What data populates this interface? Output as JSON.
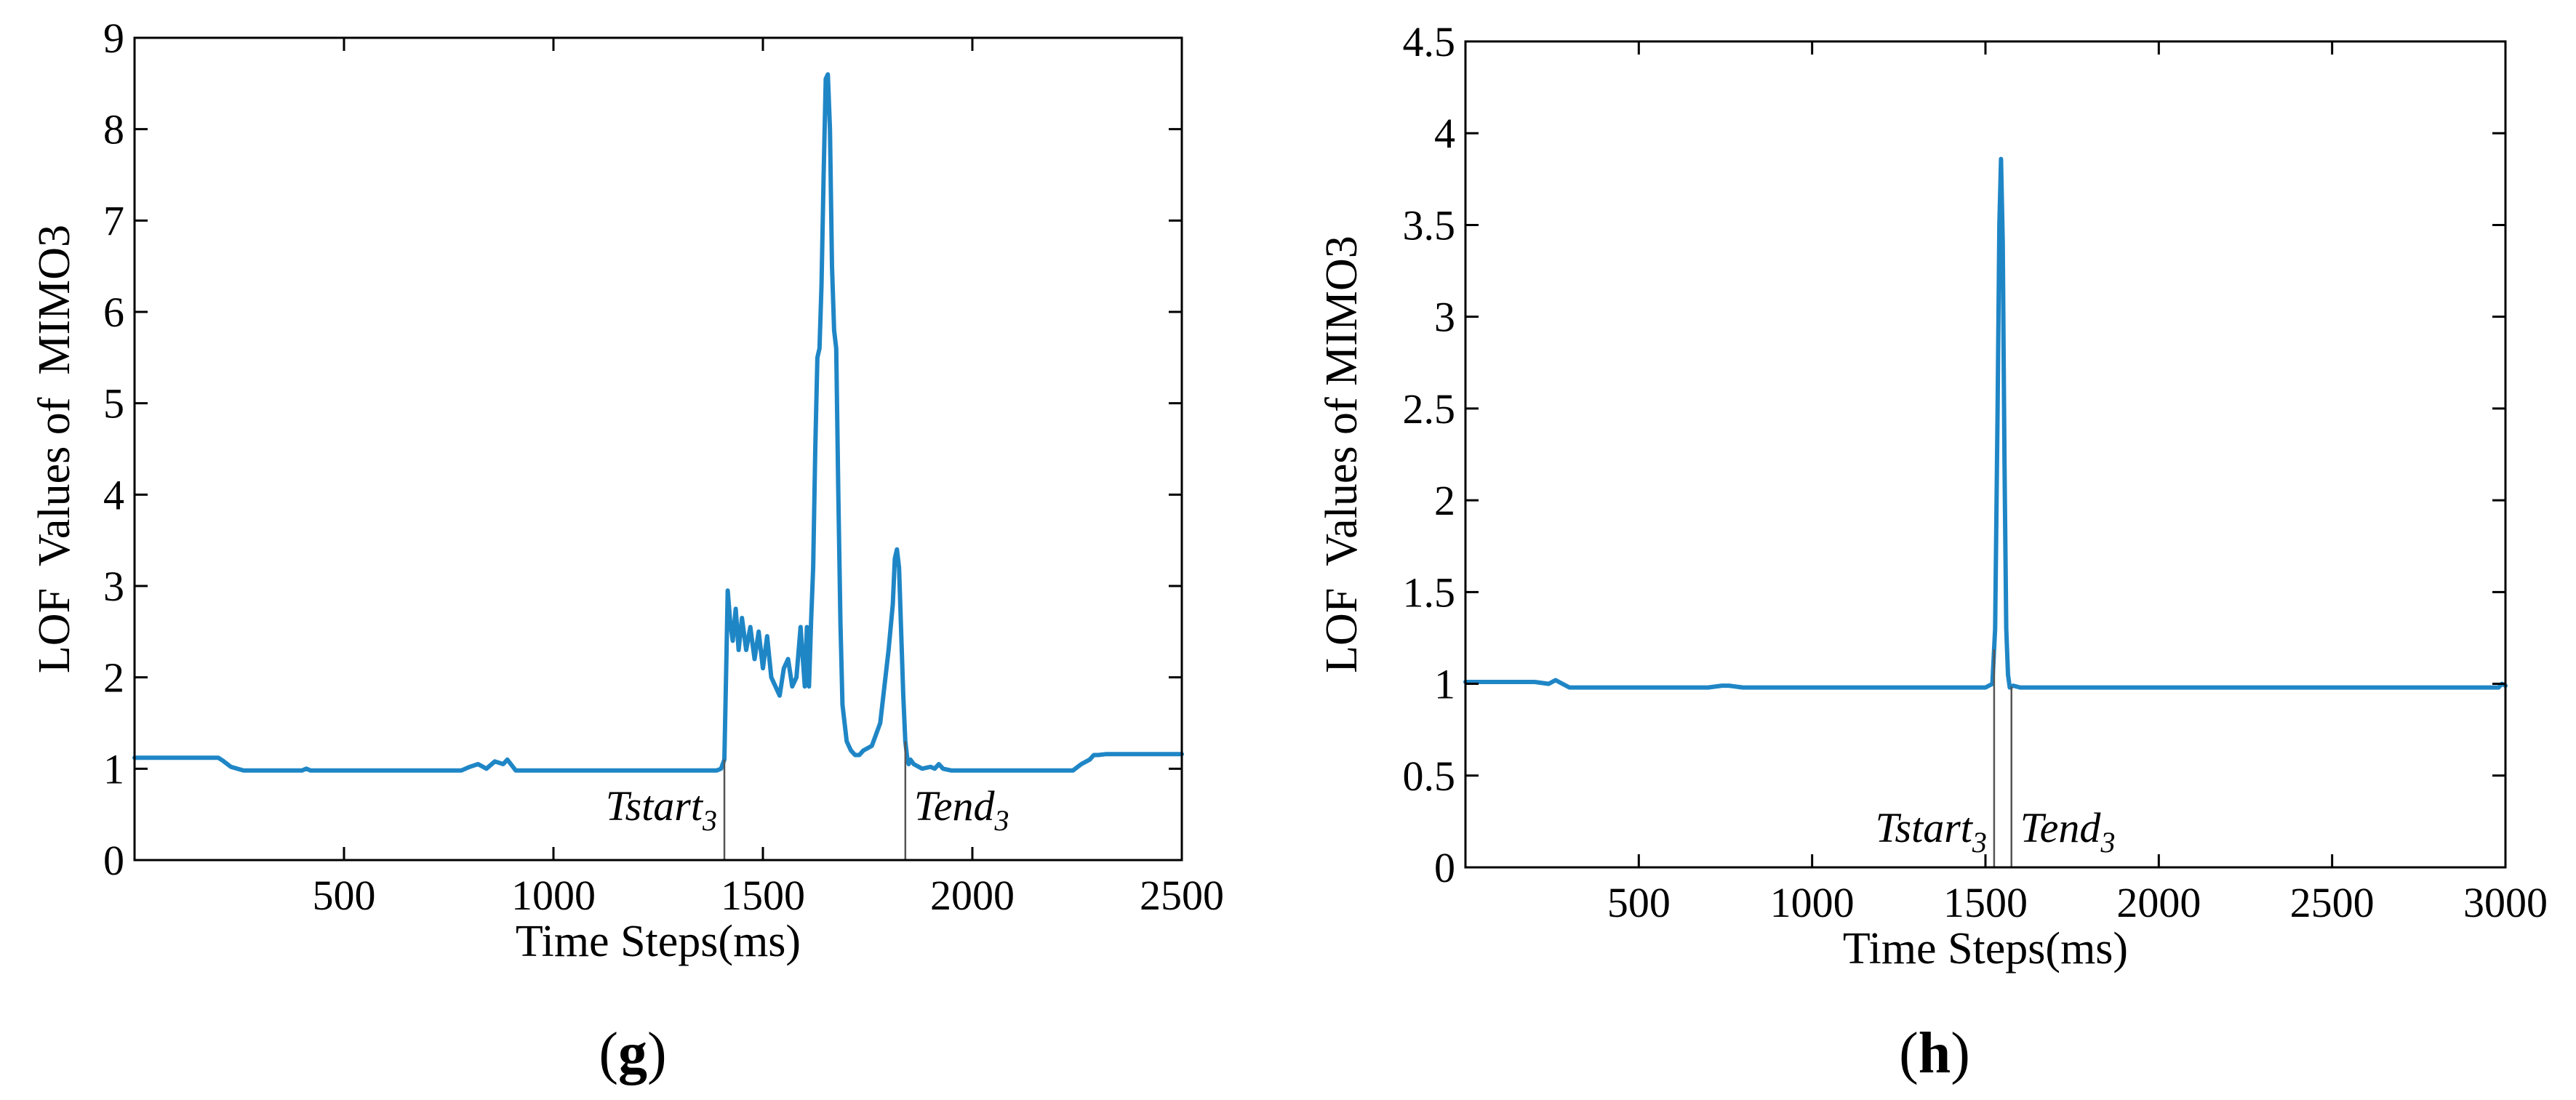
{
  "chart_data": [
    {
      "type": "line",
      "panel_label": {
        "open": "(",
        "letter": "g",
        "close": ")"
      },
      "xlabel": "Time Steps(ms)",
      "ylabel": "LOF  Values of  MIMO3",
      "xlim": [
        0,
        2500
      ],
      "ylim": [
        0,
        9
      ],
      "xticks": [
        500,
        1000,
        1500,
        2000,
        2500
      ],
      "yticks": [
        0,
        1,
        2,
        3,
        4,
        5,
        6,
        7,
        8,
        9
      ],
      "color": "#1f86c6",
      "annotations": [
        {
          "base": "Tstart",
          "sub": "3",
          "x": 1408
        },
        {
          "base": "Tend",
          "sub": "3",
          "x": 1840
        }
      ],
      "series": [
        {
          "name": "LOF",
          "x": [
            0,
            200,
            210,
            230,
            260,
            400,
            410,
            420,
            600,
            780,
            800,
            820,
            840,
            860,
            880,
            890,
            910,
            1000,
            1200,
            1390,
            1400,
            1408,
            1412,
            1416,
            1422,
            1428,
            1435,
            1442,
            1450,
            1460,
            1470,
            1480,
            1490,
            1500,
            1510,
            1520,
            1530,
            1540,
            1550,
            1560,
            1570,
            1580,
            1590,
            1600,
            1605,
            1610,
            1615,
            1620,
            1625,
            1630,
            1635,
            1640,
            1645,
            1650,
            1655,
            1660,
            1665,
            1670,
            1675,
            1680,
            1685,
            1690,
            1700,
            1710,
            1720,
            1730,
            1740,
            1760,
            1780,
            1800,
            1810,
            1815,
            1820,
            1825,
            1830,
            1835,
            1840,
            1845,
            1848,
            1852,
            1860,
            1880,
            1900,
            1910,
            1920,
            1930,
            1950,
            2000,
            2150,
            2240,
            2260,
            2280,
            2290,
            2300,
            2320,
            2500
          ],
          "y": [
            1.12,
            1.12,
            1.09,
            1.02,
            0.98,
            0.98,
            1.0,
            0.98,
            0.98,
            0.98,
            1.02,
            1.05,
            1.0,
            1.08,
            1.05,
            1.1,
            0.98,
            0.98,
            0.98,
            0.98,
            1.0,
            1.1,
            2.0,
            2.95,
            2.6,
            2.4,
            2.75,
            2.3,
            2.65,
            2.3,
            2.55,
            2.2,
            2.5,
            2.1,
            2.45,
            2.0,
            1.9,
            1.8,
            2.1,
            2.2,
            1.9,
            2.0,
            2.55,
            1.9,
            2.55,
            1.9,
            2.6,
            3.2,
            4.5,
            5.5,
            5.6,
            6.3,
            7.5,
            8.55,
            8.6,
            8.0,
            6.5,
            5.8,
            5.6,
            4.0,
            2.6,
            1.7,
            1.3,
            1.2,
            1.15,
            1.15,
            1.2,
            1.25,
            1.5,
            2.3,
            2.8,
            3.3,
            3.4,
            3.2,
            2.5,
            1.8,
            1.3,
            1.1,
            1.05,
            1.1,
            1.05,
            1.0,
            1.02,
            1.0,
            1.05,
            1.0,
            0.98,
            0.98,
            0.98,
            0.98,
            1.05,
            1.1,
            1.15,
            1.15,
            1.16,
            1.16
          ]
        }
      ]
    },
    {
      "type": "line",
      "panel_label": {
        "open": "(",
        "letter": "h",
        "close": ")"
      },
      "xlabel": "Time Steps(ms)",
      "ylabel": "LOF  Values of MIMO3",
      "xlim": [
        0,
        3000
      ],
      "ylim": [
        0,
        4.5
      ],
      "xticks": [
        500,
        1000,
        1500,
        2000,
        2500,
        3000
      ],
      "yticks": [
        0,
        0.5,
        1,
        1.5,
        2,
        2.5,
        3,
        3.5,
        4,
        4.5
      ],
      "color": "#1f86c6",
      "annotations": [
        {
          "base": "Tstart",
          "sub": "3",
          "x": 1525
        },
        {
          "base": "Tend",
          "sub": "3",
          "x": 1575
        }
      ],
      "series": [
        {
          "name": "LOF",
          "x": [
            0,
            200,
            240,
            260,
            280,
            300,
            330,
            500,
            700,
            740,
            760,
            800,
            1000,
            1200,
            1400,
            1500,
            1520,
            1528,
            1535,
            1540,
            1545,
            1550,
            1555,
            1560,
            1565,
            1570,
            1580,
            1600,
            1800,
            2000,
            2200,
            2400,
            2600,
            2800,
            2980,
            2990,
            3000
          ],
          "y": [
            1.01,
            1.01,
            1.0,
            1.02,
            1.0,
            0.98,
            0.98,
            0.98,
            0.98,
            0.99,
            0.99,
            0.98,
            0.98,
            0.98,
            0.98,
            0.98,
            1.0,
            1.3,
            2.5,
            3.5,
            3.86,
            3.4,
            2.2,
            1.3,
            1.05,
            0.98,
            0.99,
            0.98,
            0.98,
            0.98,
            0.98,
            0.98,
            0.98,
            0.98,
            0.98,
            1.0,
            0.99
          ]
        }
      ]
    }
  ]
}
